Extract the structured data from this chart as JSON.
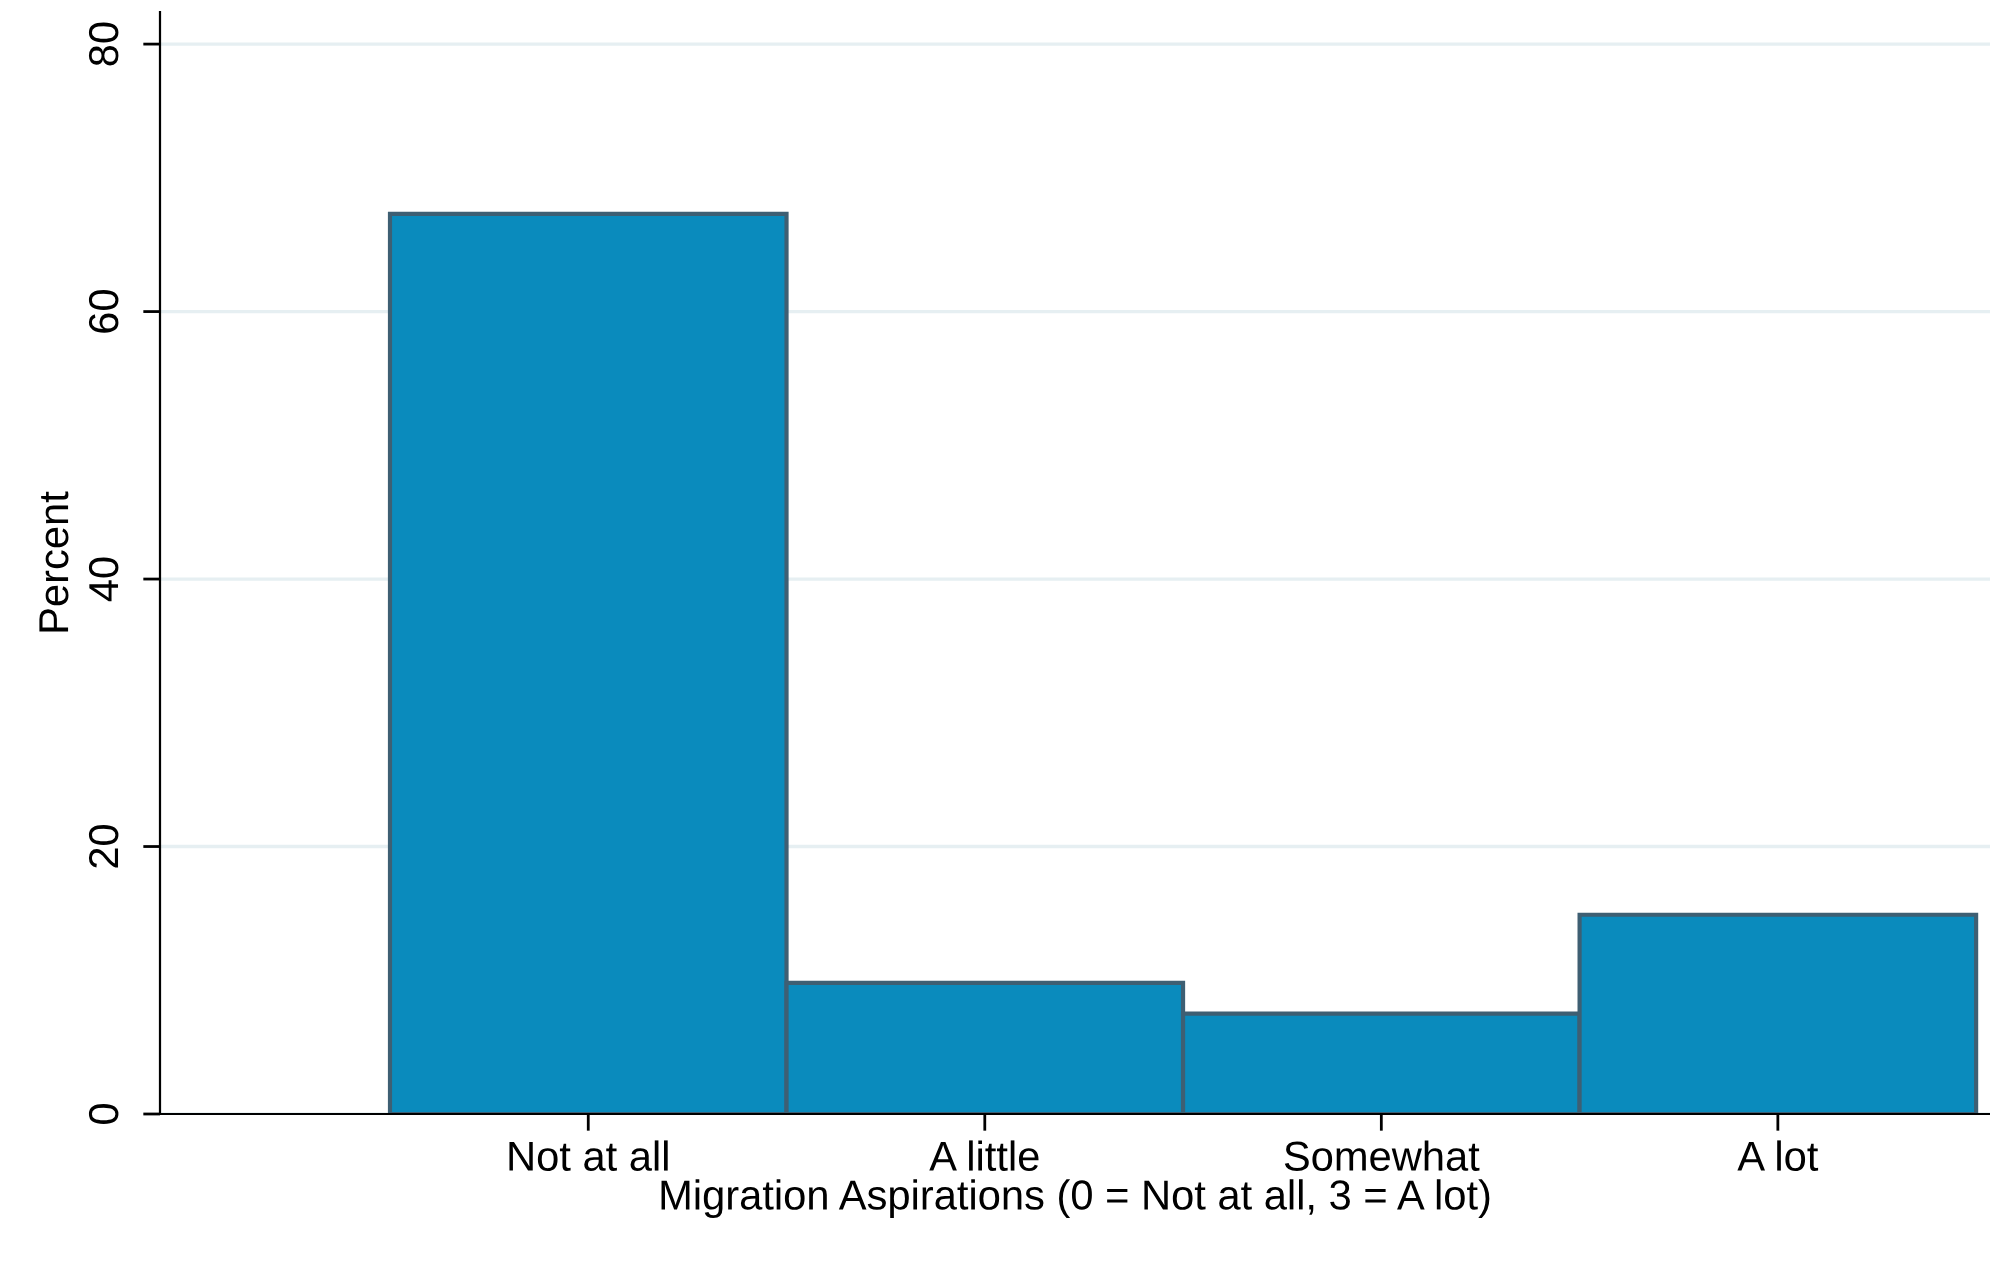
{
  "chart_data": {
    "type": "bar",
    "xlabel": "Migration Aspirations (0 = Not at all, 3 = A lot)",
    "ylabel": "Percent",
    "categories": [
      "Not at all",
      "A little",
      "Somewhat",
      "A lot"
    ],
    "values": [
      67.3,
      9.8,
      7.5,
      14.9
    ],
    "color": "#0a8bbd",
    "ylim": [
      0,
      82.4
    ],
    "yticks": [
      0,
      20,
      40,
      60,
      80
    ],
    "grid": "y"
  }
}
